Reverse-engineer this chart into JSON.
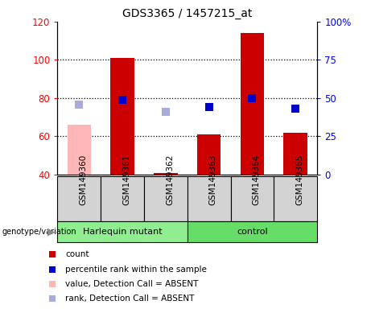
{
  "title": "GDS3365 / 1457215_at",
  "samples": [
    "GSM149360",
    "GSM149361",
    "GSM149362",
    "GSM149363",
    "GSM149364",
    "GSM149365"
  ],
  "count_values": [
    66,
    101,
    41,
    61,
    114,
    62
  ],
  "count_absent": [
    true,
    false,
    false,
    false,
    false,
    false
  ],
  "rank_values": [
    46,
    49,
    41,
    44,
    50,
    43
  ],
  "rank_absent": [
    true,
    false,
    true,
    false,
    false,
    false
  ],
  "groups": [
    {
      "label": "Harlequin mutant",
      "samples": [
        0,
        1,
        2
      ],
      "color": "#90EE90"
    },
    {
      "label": "control",
      "samples": [
        3,
        4,
        5
      ],
      "color": "#66DD66"
    }
  ],
  "ylim_left": [
    40,
    120
  ],
  "ylim_right": [
    0,
    100
  ],
  "yticks_left": [
    40,
    60,
    80,
    100,
    120
  ],
  "yticks_right": [
    0,
    25,
    50,
    75,
    100
  ],
  "color_count": "#CC0000",
  "color_count_absent": "#FFB6B6",
  "color_rank": "#0000CC",
  "color_rank_absent": "#AAAADD",
  "bar_width": 0.55,
  "marker_size": 7
}
